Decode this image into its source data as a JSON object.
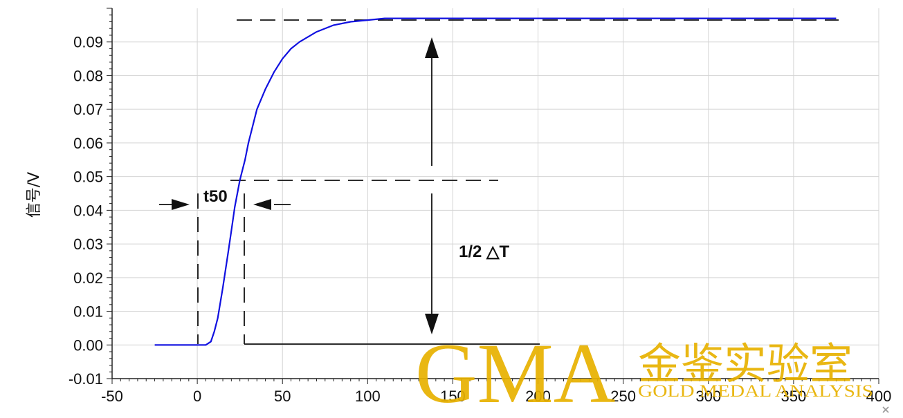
{
  "chart_data": {
    "type": "line",
    "title": "",
    "xlabel": "",
    "ylabel": "信号/V",
    "xlim": [
      -50,
      400
    ],
    "ylim": [
      -0.01,
      0.1
    ],
    "x_ticks": [
      "-50",
      "0",
      "50",
      "100",
      "150",
      "200",
      "250",
      "300",
      "350",
      "400"
    ],
    "y_ticks": [
      "-0.01",
      "0.00",
      "0.01",
      "0.02",
      "0.03",
      "0.04",
      "0.05",
      "0.06",
      "0.07",
      "0.08",
      "0.09"
    ],
    "grid": true,
    "series": [
      {
        "color": "#1010e0",
        "x": [
          -25,
          -15,
          -5,
          0,
          5,
          8,
          10,
          12,
          15,
          18,
          20,
          22,
          25,
          28,
          30,
          35,
          40,
          45,
          50,
          55,
          60,
          70,
          80,
          90,
          100,
          110,
          120,
          140,
          160,
          200,
          250,
          300,
          350,
          375
        ],
        "y": [
          0.0,
          0.0,
          0.0,
          0.0,
          0.0,
          0.001,
          0.004,
          0.008,
          0.017,
          0.027,
          0.034,
          0.041,
          0.049,
          0.055,
          0.06,
          0.07,
          0.076,
          0.081,
          0.085,
          0.088,
          0.09,
          0.093,
          0.095,
          0.096,
          0.0965,
          0.097,
          0.097,
          0.097,
          0.097,
          0.097,
          0.097,
          0.097,
          0.097,
          0.097
        ]
      }
    ],
    "annotations": {
      "t50_label": "t50",
      "delta_label": "1/2 △T"
    }
  },
  "watermark": {
    "logo": "GMA",
    "chinese": "金鉴实验室",
    "english": "GOLD MEDAL ANALYSIS",
    "color": "#e8b100"
  }
}
